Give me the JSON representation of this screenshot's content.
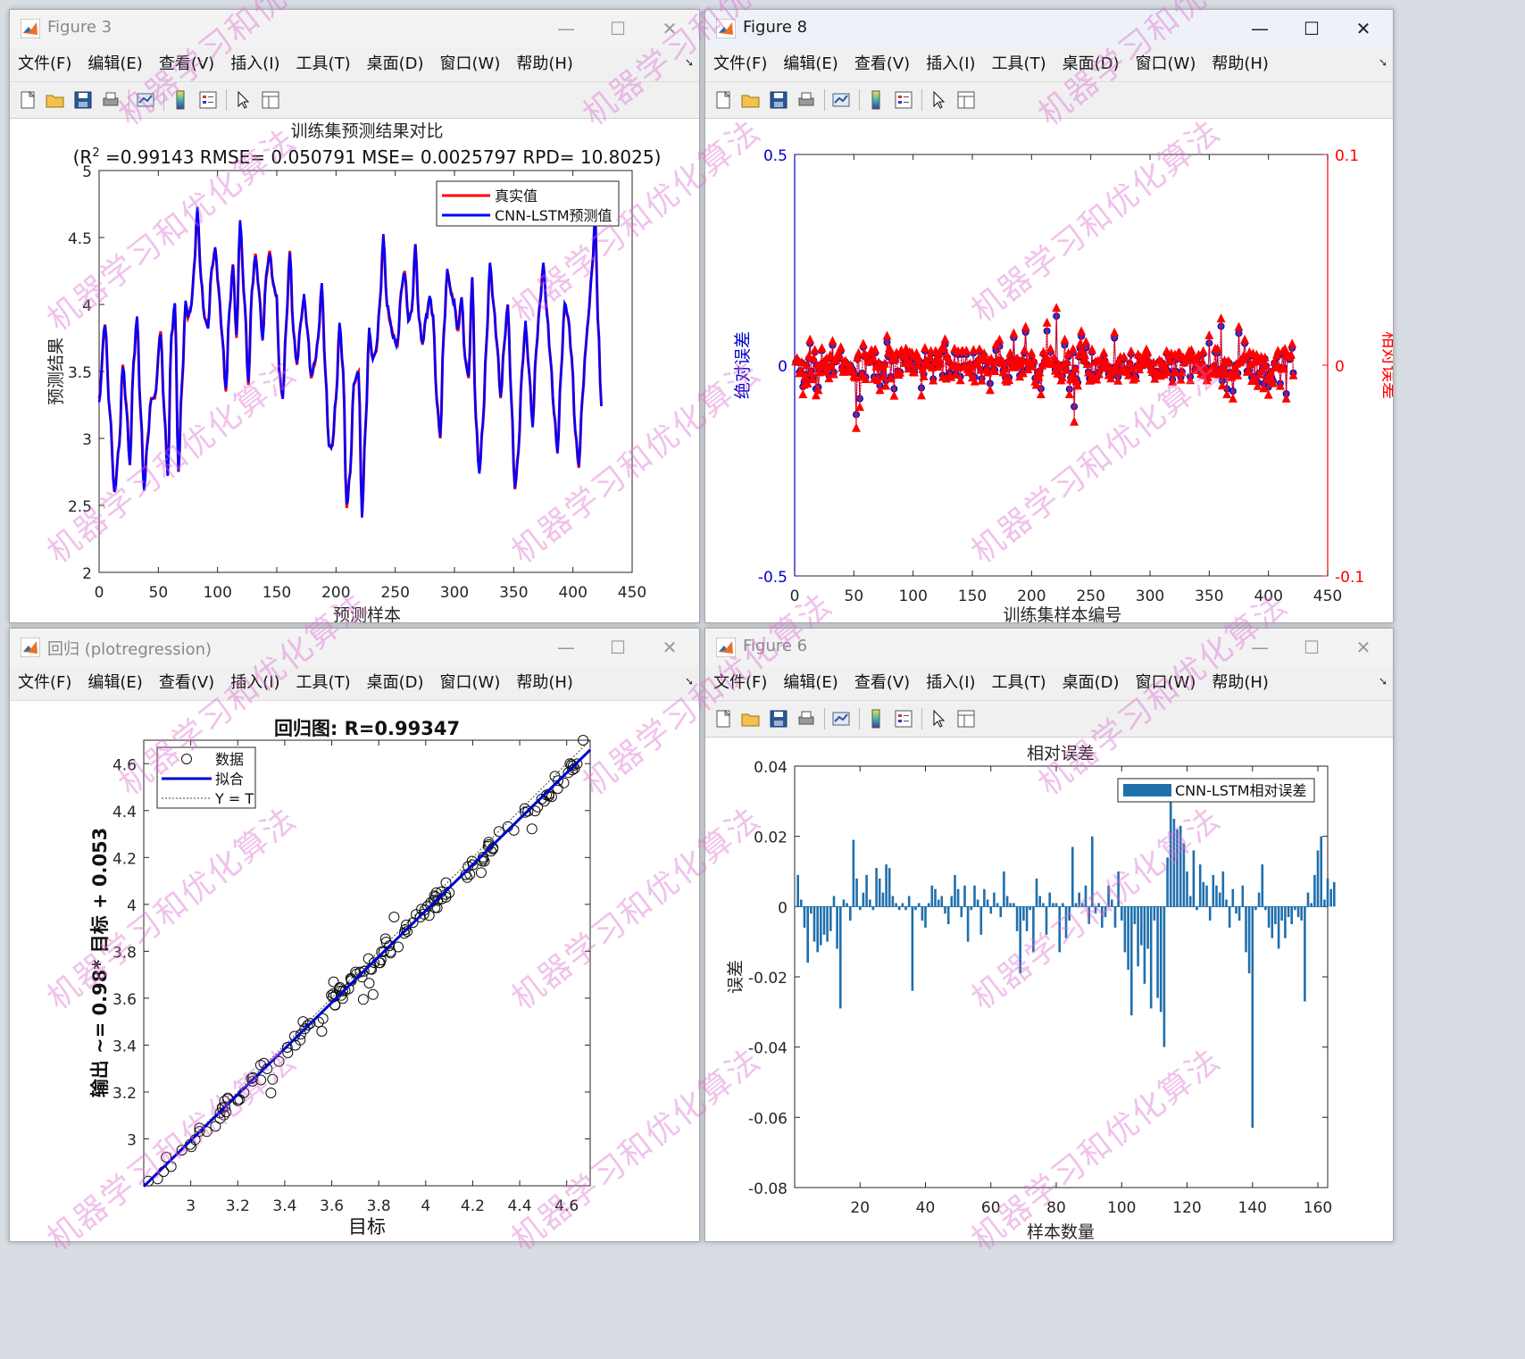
{
  "menu": [
    "文件(F)",
    "编辑(E)",
    "查看(V)",
    "插入(I)",
    "工具(T)",
    "桌面(D)",
    "窗口(W)",
    "帮助(H)"
  ],
  "toolbar_icons": [
    "new-figure-icon",
    "open-file-icon",
    "save-icon",
    "print-icon",
    "link-plot-icon",
    "insert-colorbar-icon",
    "insert-legend-icon",
    "edit-plot-arrow-icon",
    "property-inspector-icon"
  ],
  "watermark": "机器学习和优化算法",
  "fig3": {
    "title": "Figure 3",
    "chart_data": {
      "type": "line",
      "title": "训练集预测结果对比",
      "subtitle_prefix": "(R",
      "subtitle_sup": "2",
      "subtitle_rest": " =0.99143 RMSE= 0.050791 MSE= 0.0025797 RPD= 10.8025)",
      "xlabel": "预测样本",
      "ylabel": "预测结果",
      "xlim": [
        0,
        450
      ],
      "ylim": [
        2,
        5
      ],
      "xticks": [
        "0",
        "50",
        "100",
        "150",
        "200",
        "250",
        "300",
        "350",
        "400",
        "450"
      ],
      "yticks": [
        "2",
        "2.5",
        "3",
        "3.5",
        "4",
        "4.5",
        "5"
      ],
      "legend": [
        "真实值",
        "CNN-LSTM预测值"
      ],
      "series_colors": [
        "#ff0000",
        "#0000ff"
      ],
      "n_points": 421,
      "keypoints": [
        [
          0,
          3.3
        ],
        [
          5,
          3.85
        ],
        [
          9,
          3.2
        ],
        [
          13,
          2.6
        ],
        [
          17,
          2.95
        ],
        [
          20,
          3.55
        ],
        [
          23,
          3.25
        ],
        [
          26,
          2.8
        ],
        [
          29,
          3.55
        ],
        [
          32,
          3.9
        ],
        [
          35,
          3.2
        ],
        [
          38,
          2.63
        ],
        [
          41,
          3.0
        ],
        [
          44,
          3.3
        ],
        [
          47,
          3.3
        ],
        [
          52,
          3.8
        ],
        [
          55,
          3.2
        ],
        [
          58,
          2.73
        ],
        [
          61,
          3.75
        ],
        [
          64,
          4.0
        ],
        [
          67,
          2.75
        ],
        [
          70,
          3.4
        ],
        [
          73,
          4.0
        ],
        [
          75,
          3.9
        ],
        [
          78,
          4.0
        ],
        [
          80,
          4.25
        ],
        [
          83,
          4.7
        ],
        [
          86,
          4.2
        ],
        [
          89,
          3.9
        ],
        [
          92,
          3.85
        ],
        [
          95,
          4.25
        ],
        [
          98,
          4.42
        ],
        [
          101,
          4.1
        ],
        [
          104,
          3.75
        ],
        [
          107,
          3.35
        ],
        [
          110,
          3.95
        ],
        [
          113,
          4.3
        ],
        [
          116,
          3.75
        ],
        [
          119,
          4.6
        ],
        [
          123,
          4.0
        ],
        [
          126,
          3.4
        ],
        [
          129,
          4.1
        ],
        [
          132,
          4.38
        ],
        [
          135,
          4.1
        ],
        [
          138,
          3.75
        ],
        [
          141,
          4.2
        ],
        [
          144,
          4.4
        ],
        [
          147,
          4.15
        ],
        [
          150,
          4.05
        ],
        [
          152,
          3.5
        ],
        [
          155,
          3.3
        ],
        [
          158,
          3.85
        ],
        [
          161,
          4.4
        ],
        [
          164,
          3.8
        ],
        [
          167,
          3.55
        ],
        [
          170,
          3.85
        ],
        [
          173,
          4.05
        ],
        [
          176,
          3.8
        ],
        [
          179,
          3.45
        ],
        [
          182,
          3.55
        ],
        [
          185,
          3.75
        ],
        [
          188,
          4.15
        ],
        [
          191,
          3.5
        ],
        [
          194,
          2.95
        ],
        [
          197,
          2.95
        ],
        [
          200,
          3.3
        ],
        [
          203,
          3.85
        ],
        [
          206,
          3.5
        ],
        [
          209,
          2.48
        ],
        [
          212,
          2.75
        ],
        [
          215,
          3.4
        ],
        [
          219,
          3.5
        ],
        [
          222,
          2.43
        ],
        [
          225,
          3.1
        ],
        [
          228,
          3.8
        ],
        [
          231,
          3.6
        ],
        [
          234,
          3.65
        ],
        [
          237,
          4.0
        ],
        [
          240,
          4.5
        ],
        [
          243,
          4.0
        ],
        [
          246,
          3.85
        ],
        [
          249,
          3.75
        ],
        [
          252,
          3.7
        ],
        [
          255,
          4.1
        ],
        [
          258,
          4.25
        ],
        [
          261,
          3.9
        ],
        [
          264,
          3.95
        ],
        [
          267,
          4.45
        ],
        [
          270,
          3.9
        ],
        [
          273,
          3.7
        ],
        [
          276,
          3.9
        ],
        [
          279,
          4.05
        ],
        [
          282,
          3.9
        ],
        [
          285,
          3.3
        ],
        [
          288,
          3.0
        ],
        [
          291,
          3.8
        ],
        [
          294,
          4.25
        ],
        [
          297,
          4.1
        ],
        [
          300,
          4.0
        ],
        [
          303,
          3.8
        ],
        [
          306,
          4.05
        ],
        [
          309,
          3.6
        ],
        [
          312,
          3.45
        ],
        [
          315,
          4.2
        ],
        [
          318,
          3.15
        ],
        [
          321,
          2.75
        ],
        [
          324,
          3.1
        ],
        [
          327,
          3.7
        ],
        [
          330,
          4.3
        ],
        [
          333,
          4.0
        ],
        [
          336,
          3.7
        ],
        [
          339,
          3.3
        ],
        [
          342,
          3.7
        ],
        [
          345,
          4.0
        ],
        [
          348,
          3.3
        ],
        [
          351,
          2.62
        ],
        [
          354,
          2.9
        ],
        [
          357,
          3.5
        ],
        [
          360,
          3.85
        ],
        [
          363,
          3.5
        ],
        [
          366,
          3.1
        ],
        [
          369,
          3.65
        ],
        [
          372,
          4.0
        ],
        [
          375,
          4.3
        ],
        [
          378,
          3.95
        ],
        [
          381,
          3.6
        ],
        [
          384,
          3.2
        ],
        [
          387,
          2.9
        ],
        [
          390,
          3.5
        ],
        [
          393,
          4.0
        ],
        [
          396,
          3.9
        ],
        [
          399,
          3.6
        ],
        [
          402,
          3.05
        ],
        [
          405,
          2.78
        ],
        [
          408,
          3.3
        ],
        [
          411,
          3.7
        ],
        [
          413,
          3.9
        ],
        [
          416,
          4.25
        ],
        [
          419,
          4.65
        ],
        [
          421,
          3.9
        ],
        [
          424,
          3.25
        ]
      ]
    }
  },
  "fig8": {
    "title": "Figure 8",
    "chart_data": {
      "type": "line",
      "xlabel": "训练集样本编号",
      "ylabel_left": "绝对误差",
      "ylabel_right": "相对误差",
      "xlim": [
        0,
        450
      ],
      "ylim_left": [
        -0.5,
        0.5
      ],
      "ylim_right": [
        -0.1,
        0.1
      ],
      "xticks": [
        "0",
        "50",
        "100",
        "150",
        "200",
        "250",
        "300",
        "350",
        "400",
        "450"
      ],
      "yticks_left": [
        "-0.5",
        "0",
        "0.5"
      ],
      "yticks_right": [
        "-0.1",
        "0",
        "0.1"
      ],
      "left_color": "#0000cc",
      "right_color": "#ff0000",
      "n_points": 421,
      "amplitude": "relative errors mostly within ±0.02, peaks ≈ +0.027 near sample 220 and ≈ -0.030 near sample 52"
    }
  },
  "fig_reg": {
    "title": "回归 (plotregression)",
    "chart_data": {
      "type": "scatter",
      "title": "回归图: R=0.99347",
      "xlabel": "目标",
      "ylabel": "输出 ~= 0.98* 目标 + 0.053",
      "xlim": [
        2.8,
        4.7
      ],
      "ylim": [
        2.8,
        4.7
      ],
      "xticks": [
        "3",
        "3.2",
        "3.4",
        "3.6",
        "3.8",
        "4",
        "4.2",
        "4.4",
        "4.6"
      ],
      "yticks": [
        "3",
        "3.2",
        "3.4",
        "3.6",
        "3.8",
        "4",
        "4.2",
        "4.4",
        "4.6"
      ],
      "legend": [
        "数据",
        "拟合",
        "Y = T"
      ],
      "fit": {
        "slope": 0.98,
        "intercept": 0.053
      },
      "n_points": 160
    }
  },
  "fig6": {
    "title": "Figure 6",
    "chart_data": {
      "type": "bar",
      "title": "相对误差",
      "xlabel": "样本数量",
      "ylabel": "误差",
      "xlim": [
        0,
        163
      ],
      "ylim": [
        -0.08,
        0.04
      ],
      "xticks": [
        "20",
        "40",
        "60",
        "80",
        "100",
        "120",
        "140",
        "160"
      ],
      "yticks": [
        "-0.08",
        "-0.06",
        "-0.04",
        "-0.02",
        "0",
        "0.02",
        "0.04"
      ],
      "legend": [
        "CNN-LSTM相对误差"
      ],
      "bar_color": "#1f6fad",
      "values": [
        0.009,
        0.002,
        -0.006,
        -0.016,
        -0.002,
        -0.01,
        -0.013,
        -0.011,
        -0.008,
        -0.01,
        -0.007,
        0.003,
        -0.012,
        -0.029,
        0.002,
        0.001,
        -0.004,
        0.019,
        0.008,
        -0.001,
        0.004,
        0.009,
        0.002,
        -0.001,
        0.011,
        0.008,
        0.004,
        0.012,
        0.011,
        0.003,
        0.001,
        -0.001,
        0.001,
        -0.001,
        0.003,
        -0.024,
        -0.001,
        0.001,
        -0.004,
        -0.006,
        0.001,
        0.006,
        0.005,
        0.002,
        0.003,
        -0.002,
        -0.005,
        0.003,
        0.009,
        0.005,
        -0.003,
        0.006,
        -0.01,
        -0.001,
        0.006,
        0.002,
        -0.008,
        0.005,
        0.002,
        -0.002,
        0.004,
        0.001,
        -0.003,
        0.01,
        0.003,
        0.001,
        0.001,
        -0.007,
        -0.019,
        -0.004,
        -0.007,
        -0.001,
        -0.013,
        0.008,
        0.003,
        0.001,
        -0.008,
        0.004,
        0.001,
        0.001,
        -0.013,
        0.001,
        -0.009,
        -0.004,
        0.017,
        0.001,
        0.004,
        0.001,
        0.006,
        -0.005,
        0.02,
        -0.002,
        0.001,
        -0.006,
        -0.003,
        0.006,
        0.002,
        -0.006,
        0.01,
        -0.004,
        -0.013,
        -0.018,
        -0.031,
        -0.005,
        -0.017,
        -0.011,
        -0.022,
        -0.012,
        -0.029,
        -0.004,
        -0.026,
        -0.03,
        -0.04,
        0.014,
        0.03,
        0.025,
        0.022,
        0.023,
        0.018,
        0.01,
        0.003,
        0.016,
        -0.001,
        0.012,
        0.007,
        0.006,
        -0.004,
        0.009,
        0.006,
        0.004,
        0.01,
        0.002,
        -0.006,
        0.005,
        -0.002,
        -0.004,
        0.006,
        -0.013,
        -0.019,
        -0.063,
        -0.001,
        0.004,
        0.012,
        -0.001,
        -0.006,
        -0.009,
        -0.005,
        -0.012,
        -0.004,
        -0.009,
        -0.003,
        -0.005,
        -0.001,
        -0.003,
        -0.004,
        -0.027,
        0.004,
        0.001,
        0.009,
        0.016,
        0.02,
        0.002,
        0.008,
        0.005,
        0.007
      ]
    }
  }
}
